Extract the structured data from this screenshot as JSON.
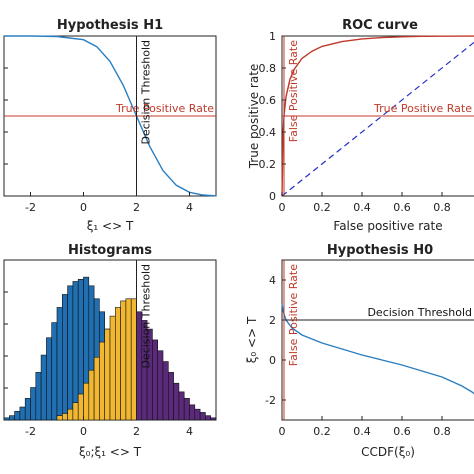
{
  "chart_data": [
    {
      "id": "h1",
      "type": "line",
      "title": "Hypothesis H1",
      "xlabel": "ξ₁ <> T",
      "ylabel": "",
      "xlim": [
        -3,
        5
      ],
      "ylim": [
        0,
        1
      ],
      "xticks": [
        "-2",
        "0",
        "2",
        "4"
      ],
      "xtick_values": [
        -2,
        0,
        2,
        4
      ],
      "series": [
        {
          "x": [
            -3,
            -2,
            -1,
            0,
            0.5,
            1,
            1.5,
            2,
            2.5,
            3,
            3.5,
            4,
            4.5,
            5
          ],
          "y": [
            1,
            1,
            0.997,
            0.977,
            0.933,
            0.841,
            0.691,
            0.5,
            0.309,
            0.159,
            0.067,
            0.023,
            0.006,
            0.001
          ],
          "color": "#2a7fc1"
        }
      ],
      "hline": {
        "y": 0.5,
        "label": "True Positive Rate",
        "color": "#c0392b"
      },
      "vline": {
        "x": 2,
        "label": "Decision Threshold",
        "color": "#222222"
      }
    },
    {
      "id": "roc",
      "type": "line",
      "title": "ROC curve",
      "xlabel": "False positive rate",
      "ylabel": "True positive rate",
      "xlim": [
        0,
        1
      ],
      "ylim": [
        0,
        1
      ],
      "xticks": [
        "0",
        "0.2",
        "0.4",
        "0.6",
        "0.8"
      ],
      "xtick_values": [
        0,
        0.2,
        0.4,
        0.6,
        0.8
      ],
      "yticks": [
        "0",
        "0.2",
        "0.4",
        "0.6",
        "0.8",
        "1"
      ],
      "ytick_values": [
        0,
        0.2,
        0.4,
        0.6,
        0.8,
        1
      ],
      "series": [
        {
          "x": [
            0,
            0.005,
            0.01,
            0.02,
            0.04,
            0.06,
            0.1,
            0.15,
            0.2,
            0.3,
            0.4,
            0.5,
            0.6,
            0.7,
            0.8,
            1
          ],
          "y": [
            0,
            0.38,
            0.5,
            0.62,
            0.73,
            0.79,
            0.86,
            0.905,
            0.935,
            0.965,
            0.982,
            0.99,
            0.995,
            0.998,
            0.999,
            1
          ],
          "color": "#c0392b"
        }
      ],
      "diagonal": {
        "color": "#2230c8"
      },
      "hline": {
        "y": 0.5,
        "label": "True Positive Rate",
        "color": "#c0392b"
      },
      "vline": {
        "x": 0.01,
        "label": "False Positive Rate",
        "color": "#c0392b"
      }
    },
    {
      "id": "hist",
      "type": "bar",
      "title": "Histograms",
      "xlabel": "ξ₀;ξ₁ <> T",
      "ylabel": "",
      "xlim": [
        -3,
        5
      ],
      "xticks": [
        "-2",
        "0",
        "2",
        "4"
      ],
      "xtick_values": [
        -2,
        0,
        2,
        4
      ],
      "bin_width": 0.2,
      "series": [
        {
          "color": "#1f6fb2",
          "x": [
            -3.0,
            -2.8,
            -2.6,
            -2.4,
            -2.2,
            -2.0,
            -1.8,
            -1.6,
            -1.4,
            -1.2,
            -1.0,
            -0.8,
            -0.6,
            -0.4,
            -0.2,
            0.0,
            0.2,
            0.4,
            0.6,
            0.8,
            1.0,
            1.2,
            1.4,
            1.6,
            1.8
          ],
          "values": [
            0.01,
            0.02,
            0.04,
            0.06,
            0.1,
            0.15,
            0.22,
            0.3,
            0.38,
            0.45,
            0.52,
            0.58,
            0.62,
            0.64,
            0.65,
            0.66,
            0.62,
            0.56,
            0.5,
            0.42,
            0.34,
            0.26,
            0.19,
            0.13,
            0.09
          ]
        },
        {
          "color": "#f2b731",
          "x": [
            -1.0,
            -0.8,
            -0.6,
            -0.4,
            -0.2,
            0.0,
            0.2,
            0.4,
            0.6,
            0.8,
            1.0,
            1.2,
            1.4,
            1.6,
            1.8
          ],
          "values": [
            0.02,
            0.03,
            0.05,
            0.08,
            0.12,
            0.17,
            0.23,
            0.29,
            0.36,
            0.42,
            0.48,
            0.52,
            0.55,
            0.56,
            0.56
          ]
        },
        {
          "color": "#5b2a7a",
          "x": [
            2.0,
            2.2,
            2.4,
            2.6,
            2.8,
            3.0,
            3.2,
            3.4,
            3.6,
            3.8,
            4.0,
            4.2,
            4.4,
            4.6,
            4.8
          ],
          "values": [
            0.5,
            0.46,
            0.42,
            0.37,
            0.32,
            0.27,
            0.22,
            0.17,
            0.13,
            0.1,
            0.07,
            0.05,
            0.035,
            0.02,
            0.01
          ]
        }
      ],
      "vline": {
        "x": 2,
        "label": "Decision Threshold",
        "color": "#222222"
      }
    },
    {
      "id": "h0",
      "type": "line",
      "title": "Hypothesis H0",
      "xlabel": "CCDF(ξ₀)",
      "ylabel": "ξ₀ <> T",
      "xlim": [
        0,
        1
      ],
      "ylim": [
        -3,
        5
      ],
      "xticks": [
        "0",
        "0.2",
        "0.4",
        "0.6",
        "0.8"
      ],
      "xtick_values": [
        0,
        0.2,
        0.4,
        0.6,
        0.8
      ],
      "yticks": [
        "-2",
        "0",
        "2",
        "4"
      ],
      "ytick_values": [
        -2,
        0,
        2,
        4
      ],
      "series": [
        {
          "x": [
            0,
            0.005,
            0.01,
            0.02,
            0.05,
            0.1,
            0.2,
            0.3,
            0.4,
            0.5,
            0.6,
            0.7,
            0.8,
            0.9,
            0.95,
            1
          ],
          "y": [
            2.8,
            2.5,
            2.3,
            2.0,
            1.6,
            1.25,
            0.85,
            0.55,
            0.25,
            0.0,
            -0.25,
            -0.55,
            -0.85,
            -1.3,
            -1.6,
            -2.0
          ],
          "color": "#2a7fc1"
        }
      ],
      "hline": {
        "y": 2,
        "label": "Decision Threshold",
        "color": "#222222"
      },
      "vline": {
        "x": 0.01,
        "label": "False Positive Rate",
        "color": "#c0392b"
      }
    }
  ]
}
